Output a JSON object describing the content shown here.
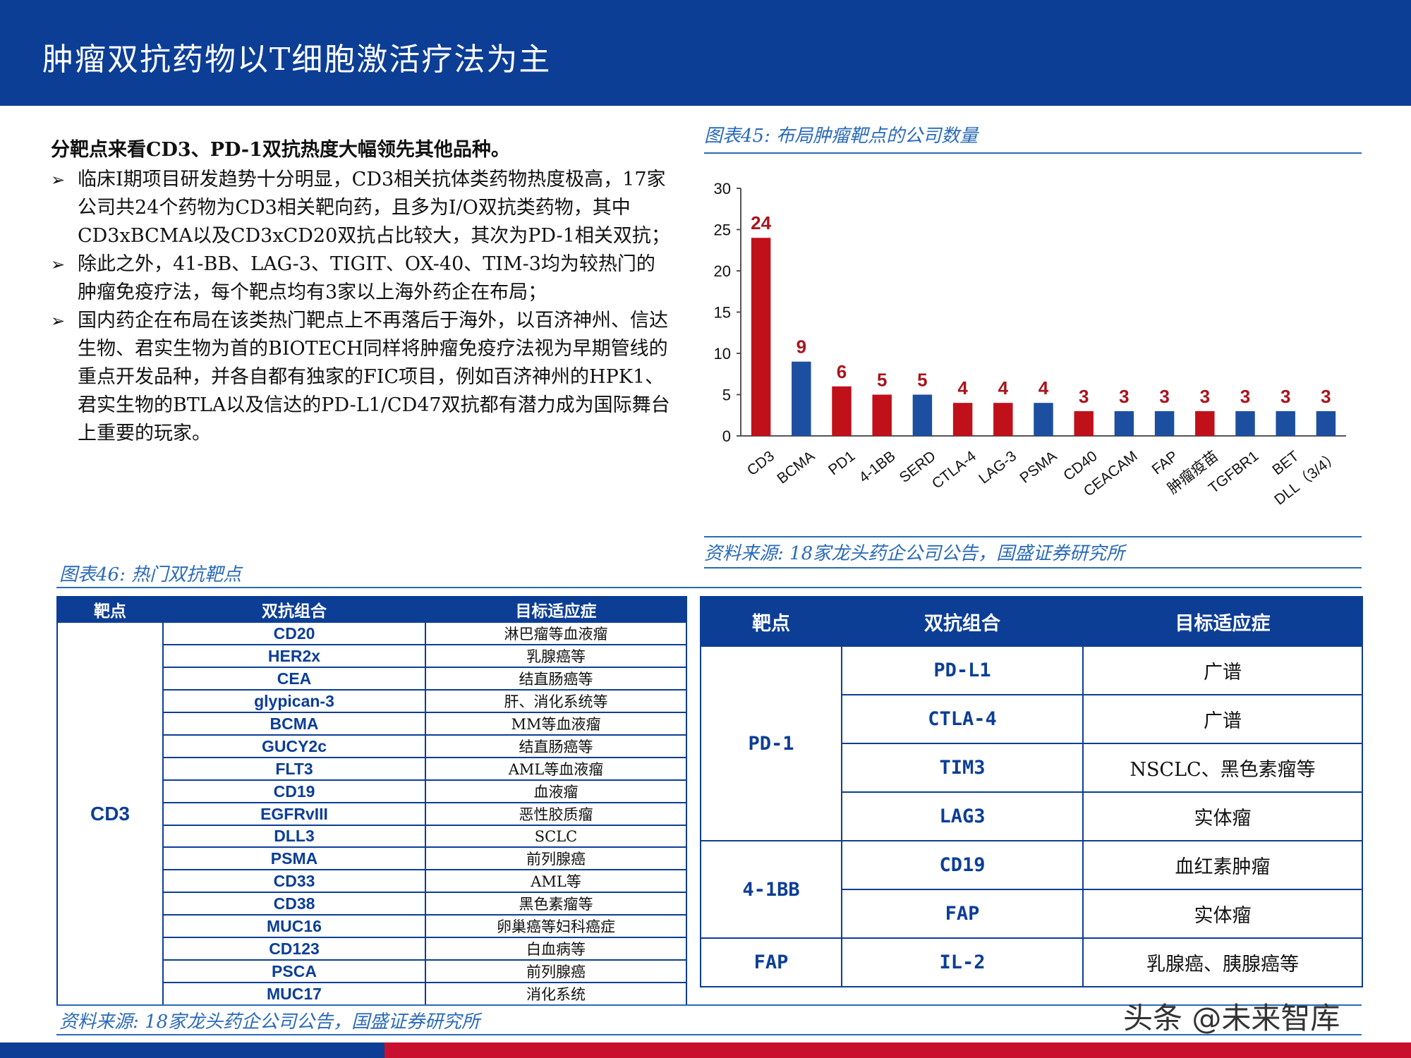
{
  "header": {
    "title": "肿瘤双抗药物以T细胞激活疗法为主"
  },
  "text": {
    "lead": "分靶点来看CD3、PD-1双抗热度大幅领先其他品种。",
    "bullets": [
      "临床I期项目研发趋势十分明显，CD3相关抗体类药物热度极高，17家公司共24个药物为CD3相关靶向药，且多为I/O双抗类药物，其中CD3xBCMA以及CD3xCD20双抗占比较大，其次为PD-1相关双抗；",
      "除此之外，41-BB、LAG-3、TIGIT、OX-40、TIM-3均为较热门的肿瘤免疫疗法，每个靶点均有3家以上海外药企在布局；",
      "国内药企在布局在该类热门靶点上不再落后于海外，以百济神州、信达生物、君实生物为首的BIOTECH同样将肿瘤免疫疗法视为早期管线的重点开发品种，并各自都有独家的FIC项目，例如百济神州的HPK1、君实生物的BTLA以及信达的PD-L1/CD47双抗都有潜力成为国际舞台上重要的玩家。"
    ],
    "bullet_arrow": "➢"
  },
  "fig45": {
    "caption": "图表45:  布局肿瘤靶点的公司数量",
    "source": "资料来源:   18家龙头药企公司公告，国盛证券研究所"
  },
  "chart_data": {
    "type": "bar",
    "categories": [
      "CD3",
      "BCMA",
      "PD1",
      "4-1BB",
      "SERD",
      "CTLA-4",
      "LAG-3",
      "PSMA",
      "CD40",
      "CEACAM",
      "FAP",
      "肿瘤疫苗",
      "TGFBR1",
      "BET",
      "DLL（3/4）"
    ],
    "values": [
      24,
      9,
      6,
      5,
      5,
      4,
      4,
      4,
      3,
      3,
      3,
      3,
      3,
      3,
      3
    ],
    "bar_colors": [
      "#c0101a",
      "#1c4fa0",
      "#c0101a",
      "#c0101a",
      "#1c4fa0",
      "#c0101a",
      "#c0101a",
      "#1c4fa0",
      "#c0101a",
      "#1c4fa0",
      "#1c4fa0",
      "#c0101a",
      "#1c4fa0",
      "#1c4fa0",
      "#1c4fa0"
    ],
    "label_color": "#a8141c",
    "ylim": [
      0,
      30
    ],
    "yticks": [
      0,
      5,
      10,
      15,
      20,
      25,
      30
    ],
    "title": "",
    "xlabel": "",
    "ylabel": "",
    "grid": false
  },
  "fig46": {
    "caption": "图表46:  热门双抗靶点",
    "source": "资料来源:  18家龙头药企公司公告，国盛证券研究所"
  },
  "table1": {
    "headers": [
      "靶点",
      "双抗组合",
      "目标适应症"
    ],
    "target": "CD3",
    "rows": [
      {
        "combo": "CD20",
        "ind": "淋巴瘤等血液瘤"
      },
      {
        "combo": "HER2x",
        "ind": "乳腺癌等"
      },
      {
        "combo": "CEA",
        "ind": "结直肠癌等"
      },
      {
        "combo": "glypican-3",
        "ind": "肝、消化系统等"
      },
      {
        "combo": "BCMA",
        "ind": "MM等血液瘤"
      },
      {
        "combo": "GUCY2c",
        "ind": "结直肠癌等"
      },
      {
        "combo": "FLT3",
        "ind": "AML等血液瘤"
      },
      {
        "combo": "CD19",
        "ind": "血液瘤"
      },
      {
        "combo": "EGFRvIII",
        "ind": "恶性胶质瘤"
      },
      {
        "combo": "DLL3",
        "ind": "SCLC"
      },
      {
        "combo": "PSMA",
        "ind": "前列腺癌"
      },
      {
        "combo": "CD33",
        "ind": "AML等"
      },
      {
        "combo": "CD38",
        "ind": "黑色素瘤等"
      },
      {
        "combo": "MUC16",
        "ind": "卵巢癌等妇科癌症"
      },
      {
        "combo": "CD123",
        "ind": "白血病等"
      },
      {
        "combo": "PSCA",
        "ind": "前列腺癌"
      },
      {
        "combo": "MUC17",
        "ind": "消化系统"
      }
    ]
  },
  "table2": {
    "headers": [
      "靶点",
      "双抗组合",
      "目标适应症"
    ],
    "groups": [
      {
        "target": "PD-1",
        "rows": [
          {
            "combo": "PD-L1",
            "ind": "广谱"
          },
          {
            "combo": "CTLA-4",
            "ind": "广谱"
          },
          {
            "combo": "TIM3",
            "ind": "NSCLC、黑色素瘤等"
          },
          {
            "combo": "LAG3",
            "ind": "实体瘤"
          }
        ]
      },
      {
        "target": "4-1BB",
        "rows": [
          {
            "combo": "CD19",
            "ind": "血红素肿瘤"
          },
          {
            "combo": "FAP",
            "ind": "实体瘤"
          }
        ]
      },
      {
        "target": "FAP",
        "rows": [
          {
            "combo": "IL-2",
            "ind": "乳腺癌、胰腺癌等"
          }
        ]
      }
    ]
  },
  "watermark": "头条 @未来智库"
}
